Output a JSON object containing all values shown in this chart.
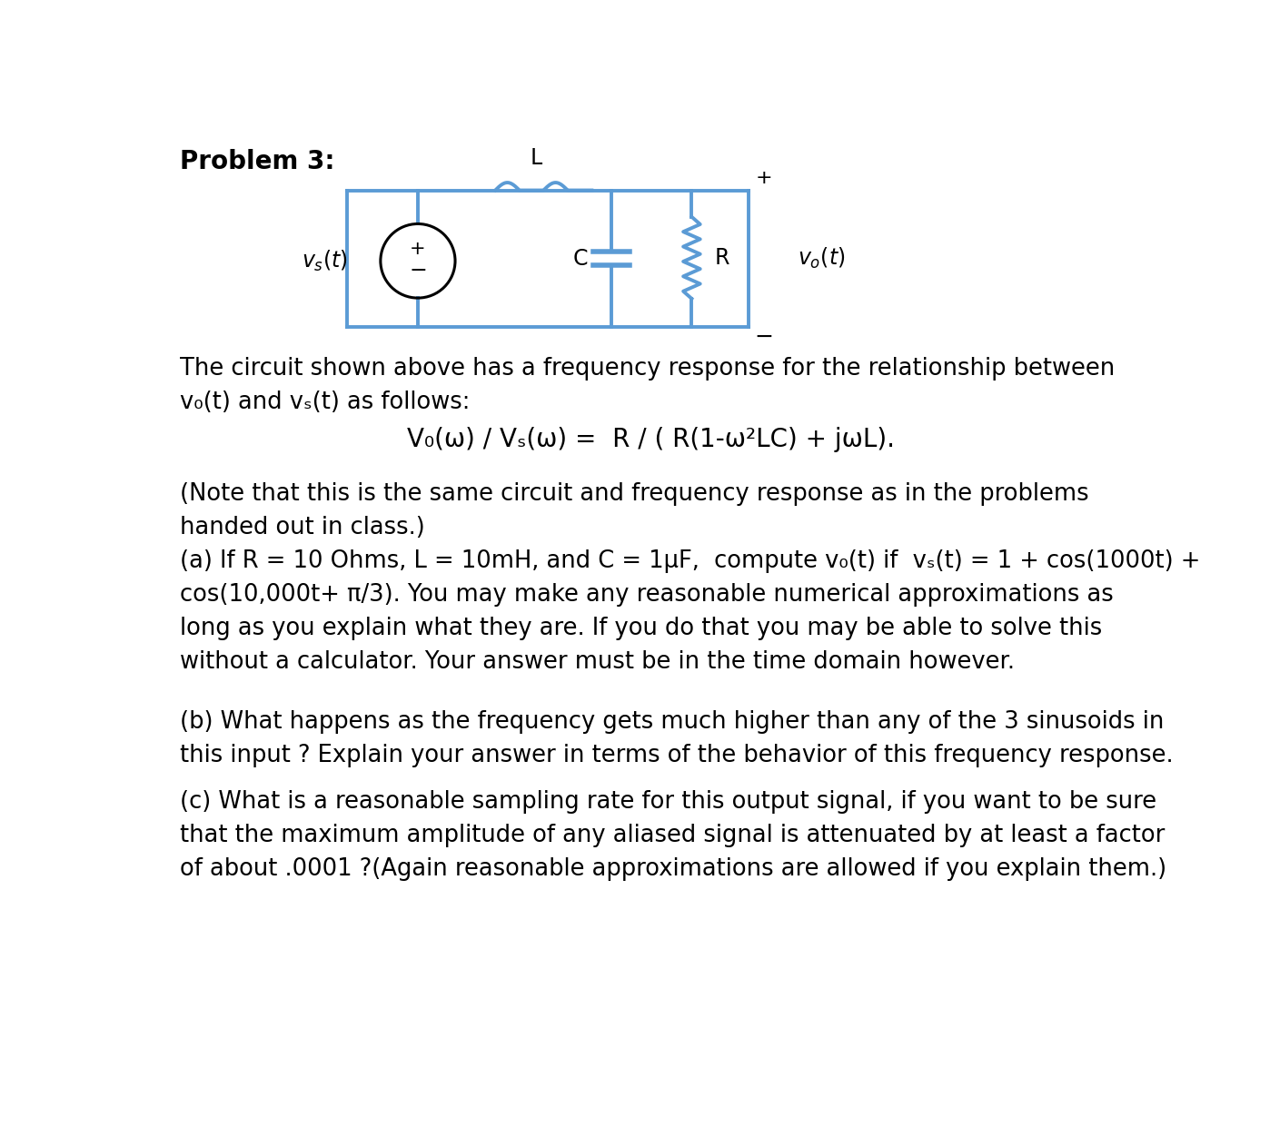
{
  "title": "Problem 3:",
  "bg_color": "#ffffff",
  "circuit_color": "#5b9bd5",
  "text_color": "#000000",
  "para1_line1": "The circuit shown above has a frequency response for the relationship between",
  "para1_line2": "v₀(t) and vₛ(t) as follows:",
  "formula": "V₀(ω) / Vₛ(ω) =  R / ( R(1-ω²LC) + jωL).",
  "para2_line1": "(Note that this is the same circuit and frequency response as in the problems",
  "para2_line2": "handed out in class.)",
  "para3a_line1": "(a) If R = 10 Ohms, L = 10mH, and C = 1μF,  compute v₀(t) if  vₛ(t) = 1 + cos(1000t) +",
  "para3a_line2": "cos(10,000t+ π/3). You may make any reasonable numerical approximations as",
  "para3a_line3": "long as you explain what they are. If you do that you may be able to solve this",
  "para3a_line4": "without a calculator. Your answer must be in the time domain however.",
  "para3b_line1": "(b) What happens as the frequency gets much higher than any of the 3 sinusoids in",
  "para3b_line2": "this input ? Explain your answer in terms of the behavior of this frequency response.",
  "para3c_line1": "(c) What is a reasonable sampling rate for this output signal, if you want to be sure",
  "para3c_line2": "that the maximum amplitude of any aliased signal is attenuated by at least a factor",
  "para3c_line3": "of about .0001 ?(Again reasonable approximations are allowed if you explain them.)"
}
